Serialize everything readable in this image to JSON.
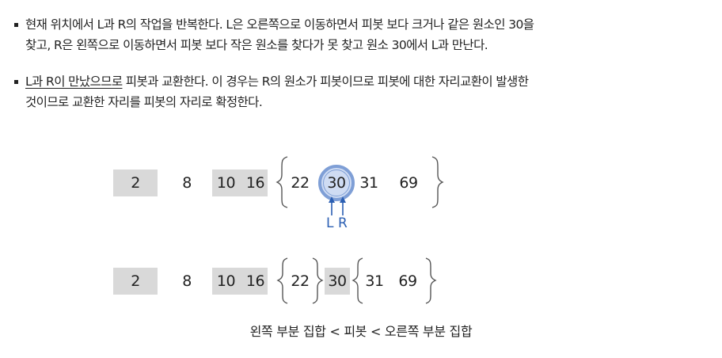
{
  "text": {
    "bullet1_line1": "현재 위치에서 L과 R의 작업을 반복한다. L은 오른쪽으로 이동하면서 피봇 보다 크거나 같은 원소인 30을",
    "bullet1_line2": "찾고, R은 왼쪽으로 이동하면서 피봇 보다 작은 원소를 찾다가 못 찾고 원소 30에서 L과 만난다.",
    "bullet2_underlined": "L과 R이 만났으므로",
    "bullet2_rest": " 피봇과 교환한다. 이 경우는 R의 원소가 피봇이므로 피봇에 대한 자리교환이 발생한",
    "bullet2_line2": "것이므로 교환한 자리를 피봇의 자리로 확정한다."
  },
  "row1": {
    "cells": [
      "2",
      "8",
      "10",
      "16",
      "22",
      "30",
      "31",
      "69"
    ],
    "pointer_left": "L",
    "pointer_right": "R"
  },
  "row2": {
    "cells": [
      "2",
      "8",
      "10",
      "16",
      "22",
      "30",
      "31",
      "69"
    ]
  },
  "caption": "왼쪽 부분 집합 < 피봇 < 오른쪽 부분 집합",
  "colors": {
    "shade": "#d9d9d9",
    "circle_fill": "#cfdcf3",
    "circle_stroke": "#7f9fd6",
    "pointer": "#2b5fb3",
    "brace": "#555555"
  }
}
